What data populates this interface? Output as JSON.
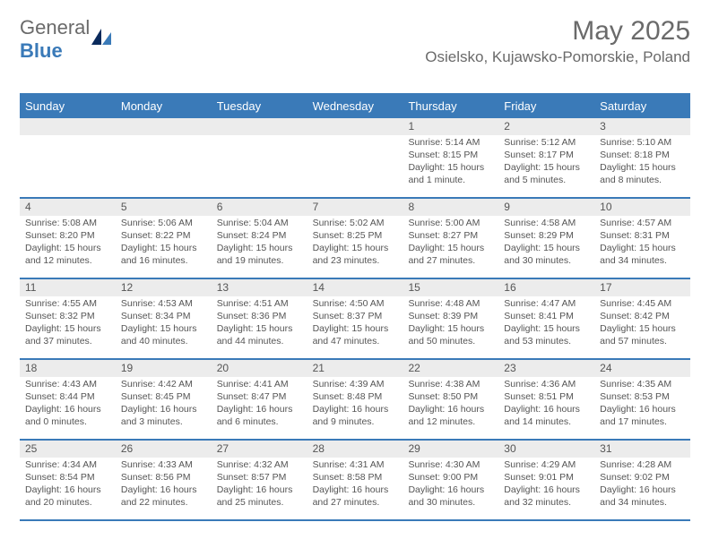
{
  "logo": {
    "text_a": "General",
    "text_b": "Blue"
  },
  "header": {
    "title": "May 2025",
    "location": "Osielsko, Kujawsko-Pomorskie, Poland"
  },
  "colors": {
    "accent": "#3a7ab8",
    "row_alt": "#ececec",
    "text": "#555555"
  },
  "daynames": [
    "Sunday",
    "Monday",
    "Tuesday",
    "Wednesday",
    "Thursday",
    "Friday",
    "Saturday"
  ],
  "weeks": [
    [
      {
        "n": "",
        "sr": "",
        "ss": "",
        "dl": ""
      },
      {
        "n": "",
        "sr": "",
        "ss": "",
        "dl": ""
      },
      {
        "n": "",
        "sr": "",
        "ss": "",
        "dl": ""
      },
      {
        "n": "",
        "sr": "",
        "ss": "",
        "dl": ""
      },
      {
        "n": "1",
        "sr": "Sunrise: 5:14 AM",
        "ss": "Sunset: 8:15 PM",
        "dl": "Daylight: 15 hours and 1 minute."
      },
      {
        "n": "2",
        "sr": "Sunrise: 5:12 AM",
        "ss": "Sunset: 8:17 PM",
        "dl": "Daylight: 15 hours and 5 minutes."
      },
      {
        "n": "3",
        "sr": "Sunrise: 5:10 AM",
        "ss": "Sunset: 8:18 PM",
        "dl": "Daylight: 15 hours and 8 minutes."
      }
    ],
    [
      {
        "n": "4",
        "sr": "Sunrise: 5:08 AM",
        "ss": "Sunset: 8:20 PM",
        "dl": "Daylight: 15 hours and 12 minutes."
      },
      {
        "n": "5",
        "sr": "Sunrise: 5:06 AM",
        "ss": "Sunset: 8:22 PM",
        "dl": "Daylight: 15 hours and 16 minutes."
      },
      {
        "n": "6",
        "sr": "Sunrise: 5:04 AM",
        "ss": "Sunset: 8:24 PM",
        "dl": "Daylight: 15 hours and 19 minutes."
      },
      {
        "n": "7",
        "sr": "Sunrise: 5:02 AM",
        "ss": "Sunset: 8:25 PM",
        "dl": "Daylight: 15 hours and 23 minutes."
      },
      {
        "n": "8",
        "sr": "Sunrise: 5:00 AM",
        "ss": "Sunset: 8:27 PM",
        "dl": "Daylight: 15 hours and 27 minutes."
      },
      {
        "n": "9",
        "sr": "Sunrise: 4:58 AM",
        "ss": "Sunset: 8:29 PM",
        "dl": "Daylight: 15 hours and 30 minutes."
      },
      {
        "n": "10",
        "sr": "Sunrise: 4:57 AM",
        "ss": "Sunset: 8:31 PM",
        "dl": "Daylight: 15 hours and 34 minutes."
      }
    ],
    [
      {
        "n": "11",
        "sr": "Sunrise: 4:55 AM",
        "ss": "Sunset: 8:32 PM",
        "dl": "Daylight: 15 hours and 37 minutes."
      },
      {
        "n": "12",
        "sr": "Sunrise: 4:53 AM",
        "ss": "Sunset: 8:34 PM",
        "dl": "Daylight: 15 hours and 40 minutes."
      },
      {
        "n": "13",
        "sr": "Sunrise: 4:51 AM",
        "ss": "Sunset: 8:36 PM",
        "dl": "Daylight: 15 hours and 44 minutes."
      },
      {
        "n": "14",
        "sr": "Sunrise: 4:50 AM",
        "ss": "Sunset: 8:37 PM",
        "dl": "Daylight: 15 hours and 47 minutes."
      },
      {
        "n": "15",
        "sr": "Sunrise: 4:48 AM",
        "ss": "Sunset: 8:39 PM",
        "dl": "Daylight: 15 hours and 50 minutes."
      },
      {
        "n": "16",
        "sr": "Sunrise: 4:47 AM",
        "ss": "Sunset: 8:41 PM",
        "dl": "Daylight: 15 hours and 53 minutes."
      },
      {
        "n": "17",
        "sr": "Sunrise: 4:45 AM",
        "ss": "Sunset: 8:42 PM",
        "dl": "Daylight: 15 hours and 57 minutes."
      }
    ],
    [
      {
        "n": "18",
        "sr": "Sunrise: 4:43 AM",
        "ss": "Sunset: 8:44 PM",
        "dl": "Daylight: 16 hours and 0 minutes."
      },
      {
        "n": "19",
        "sr": "Sunrise: 4:42 AM",
        "ss": "Sunset: 8:45 PM",
        "dl": "Daylight: 16 hours and 3 minutes."
      },
      {
        "n": "20",
        "sr": "Sunrise: 4:41 AM",
        "ss": "Sunset: 8:47 PM",
        "dl": "Daylight: 16 hours and 6 minutes."
      },
      {
        "n": "21",
        "sr": "Sunrise: 4:39 AM",
        "ss": "Sunset: 8:48 PM",
        "dl": "Daylight: 16 hours and 9 minutes."
      },
      {
        "n": "22",
        "sr": "Sunrise: 4:38 AM",
        "ss": "Sunset: 8:50 PM",
        "dl": "Daylight: 16 hours and 12 minutes."
      },
      {
        "n": "23",
        "sr": "Sunrise: 4:36 AM",
        "ss": "Sunset: 8:51 PM",
        "dl": "Daylight: 16 hours and 14 minutes."
      },
      {
        "n": "24",
        "sr": "Sunrise: 4:35 AM",
        "ss": "Sunset: 8:53 PM",
        "dl": "Daylight: 16 hours and 17 minutes."
      }
    ],
    [
      {
        "n": "25",
        "sr": "Sunrise: 4:34 AM",
        "ss": "Sunset: 8:54 PM",
        "dl": "Daylight: 16 hours and 20 minutes."
      },
      {
        "n": "26",
        "sr": "Sunrise: 4:33 AM",
        "ss": "Sunset: 8:56 PM",
        "dl": "Daylight: 16 hours and 22 minutes."
      },
      {
        "n": "27",
        "sr": "Sunrise: 4:32 AM",
        "ss": "Sunset: 8:57 PM",
        "dl": "Daylight: 16 hours and 25 minutes."
      },
      {
        "n": "28",
        "sr": "Sunrise: 4:31 AM",
        "ss": "Sunset: 8:58 PM",
        "dl": "Daylight: 16 hours and 27 minutes."
      },
      {
        "n": "29",
        "sr": "Sunrise: 4:30 AM",
        "ss": "Sunset: 9:00 PM",
        "dl": "Daylight: 16 hours and 30 minutes."
      },
      {
        "n": "30",
        "sr": "Sunrise: 4:29 AM",
        "ss": "Sunset: 9:01 PM",
        "dl": "Daylight: 16 hours and 32 minutes."
      },
      {
        "n": "31",
        "sr": "Sunrise: 4:28 AM",
        "ss": "Sunset: 9:02 PM",
        "dl": "Daylight: 16 hours and 34 minutes."
      }
    ]
  ]
}
